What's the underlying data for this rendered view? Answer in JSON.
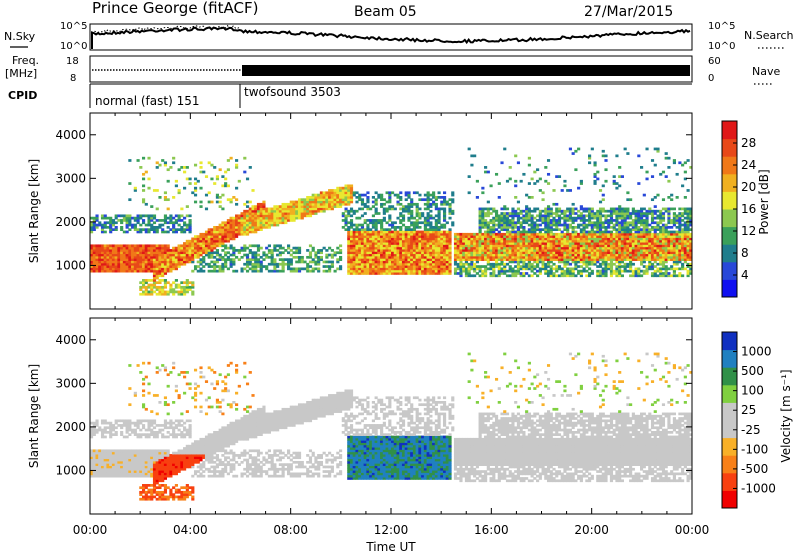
{
  "header": {
    "station": "Prince George (fitACF)",
    "beam": "Beam 05",
    "date": "27/Mar/2015"
  },
  "left_labels": {
    "nsky": "N.Sky",
    "freq_line1": "Freq.",
    "freq_line2": "[MHz]",
    "cpid": "CPID"
  },
  "right_labels": {
    "nsearch": "N.Search",
    "nave": "Nave"
  },
  "noise_ticks": {
    "left_top": "10^5",
    "left_bottom": "10^0",
    "right_top": "10^5",
    "right_bottom": "10^0"
  },
  "freq_ticks": {
    "left_top": "18",
    "left_bottom": "8",
    "right_top": "60",
    "right_bottom": "0"
  },
  "cpid_segments": [
    {
      "label": "normal (fast) 151",
      "start_hour": 0,
      "end_hour": 6
    },
    {
      "label": "twofsound 3503",
      "start_hour": 6,
      "end_hour": 24
    }
  ],
  "colors": {
    "power": [
      "#1010f0",
      "#2848d8",
      "#1f7d8c",
      "#3aa05a",
      "#8cc850",
      "#e8e830",
      "#f0b020",
      "#f07818",
      "#e84818",
      "#e01818"
    ],
    "velocity": [
      "#f00000",
      "#f84010",
      "#f88018",
      "#f8b028",
      "#c8c8c8",
      "#c8c8c8",
      "#80d040",
      "#309048",
      "#2080c0",
      "#1030c0"
    ]
  },
  "chart_data": [
    {
      "type": "heatmap",
      "ylabel": "Slant Range [km]",
      "ylim": [
        0,
        4500
      ],
      "yticks": [
        "1000",
        "2000",
        "3000",
        "4000"
      ],
      "xlim": [
        0,
        24
      ],
      "colorbar": {
        "label": "Power [dB]",
        "ticks": [
          "4",
          "8",
          "12",
          "16",
          "20",
          "24",
          "28"
        ],
        "range": [
          0,
          32
        ]
      }
    },
    {
      "type": "heatmap",
      "ylabel": "Slant Range [km]",
      "xlabel": "Time UT",
      "ylim": [
        0,
        4500
      ],
      "yticks": [
        "1000",
        "2000",
        "3000",
        "4000"
      ],
      "xlim": [
        0,
        24
      ],
      "xticks": [
        "00:00",
        "04:00",
        "08:00",
        "12:00",
        "16:00",
        "20:00",
        "00:00"
      ],
      "colorbar": {
        "label": "Velocity [m s⁻¹]",
        "ticks": [
          "1000",
          "500",
          "100",
          "25",
          "-25",
          "-100",
          "-500",
          "-1000"
        ]
      }
    }
  ]
}
